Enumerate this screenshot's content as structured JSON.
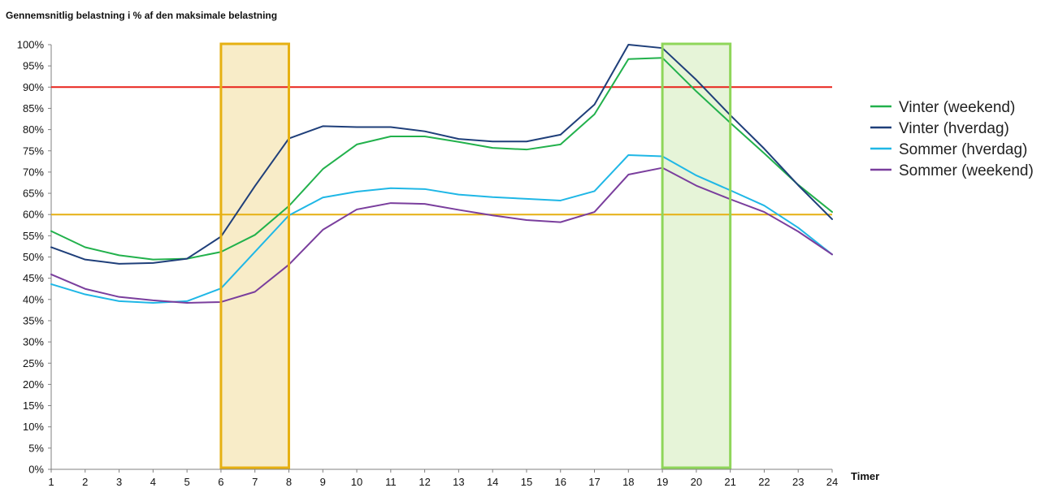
{
  "chart_data": {
    "type": "line",
    "title": "Gennemsnitlig belastning i % af den maksimale belastning",
    "xlabel": "Timer",
    "ylabel": "",
    "x": [
      1,
      2,
      3,
      4,
      5,
      6,
      7,
      8,
      9,
      10,
      11,
      12,
      13,
      14,
      15,
      16,
      17,
      18,
      19,
      20,
      21,
      22,
      23,
      24
    ],
    "xlim": [
      1,
      24
    ],
    "ylim": [
      0,
      100
    ],
    "y_ticks": [
      {
        "value": 0,
        "label": "0%"
      },
      {
        "value": 5,
        "label": "5%"
      },
      {
        "value": 10,
        "label": "10%"
      },
      {
        "value": 15,
        "label": "15%"
      },
      {
        "value": 20,
        "label": "20%"
      },
      {
        "value": 25,
        "label": "25%"
      },
      {
        "value": 30,
        "label": "30%"
      },
      {
        "value": 35,
        "label": "35%"
      },
      {
        "value": 40,
        "label": "40%"
      },
      {
        "value": 45,
        "label": "45%"
      },
      {
        "value": 50,
        "label": "50%"
      },
      {
        "value": 55,
        "label": "55%"
      },
      {
        "value": 60,
        "label": "60%"
      },
      {
        "value": 65,
        "label": "65%"
      },
      {
        "value": 70,
        "label": "70%"
      },
      {
        "value": 75,
        "label": "75%"
      },
      {
        "value": 80,
        "label": "80%"
      },
      {
        "value": 85,
        "label": "85%"
      },
      {
        "value": 90,
        "label": "90%"
      },
      {
        "value": 95,
        "label": "95%"
      },
      {
        "value": 100,
        "label": "100%"
      }
    ],
    "grid": false,
    "legend_position": "right",
    "series": [
      {
        "name": "Vinter (weekend)",
        "color": "#22b14c",
        "values": [
          56.1,
          52.3,
          50.4,
          49.4,
          49.6,
          51.2,
          55.2,
          62.0,
          70.7,
          76.5,
          78.4,
          78.4,
          77.1,
          75.7,
          75.3,
          76.5,
          83.6,
          96.6,
          96.9,
          89.0,
          81.6,
          74.4,
          67.0,
          60.6
        ]
      },
      {
        "name": "Vinter (hverdag)",
        "color": "#1f3f7a",
        "values": [
          52.3,
          49.4,
          48.4,
          48.6,
          49.6,
          54.8,
          66.7,
          77.9,
          80.8,
          80.6,
          80.6,
          79.6,
          77.8,
          77.2,
          77.2,
          78.8,
          85.9,
          100.0,
          99.2,
          91.7,
          83.4,
          75.5,
          66.9,
          58.9
        ]
      },
      {
        "name": "Sommer (hverdag)",
        "color": "#1fb7e6",
        "values": [
          43.6,
          41.2,
          39.6,
          39.2,
          39.6,
          42.6,
          51.2,
          59.8,
          64.0,
          65.4,
          66.2,
          66.0,
          64.7,
          64.1,
          63.7,
          63.3,
          65.5,
          74.0,
          73.7,
          69.2,
          65.7,
          62.1,
          56.9,
          50.6
        ]
      },
      {
        "name": "Sommer (weekend)",
        "color": "#7a3e9d",
        "values": [
          45.9,
          42.5,
          40.6,
          39.8,
          39.2,
          39.4,
          41.8,
          48.2,
          56.4,
          61.2,
          62.7,
          62.5,
          61.1,
          59.8,
          58.7,
          58.2,
          60.6,
          69.4,
          71.0,
          66.8,
          63.6,
          60.6,
          56.0,
          50.6
        ]
      }
    ],
    "reference_lines": [
      {
        "value": 90,
        "color": "#e8221b"
      },
      {
        "value": 60,
        "color": "#e6b012"
      }
    ],
    "highlight_bands": [
      {
        "x_start": 6,
        "x_end": 8,
        "fill": "#f8ecc8",
        "stroke": "#e6b012"
      },
      {
        "x_start": 19,
        "x_end": 21,
        "fill": "#e6f4d8",
        "stroke": "#8fd65a"
      }
    ]
  }
}
